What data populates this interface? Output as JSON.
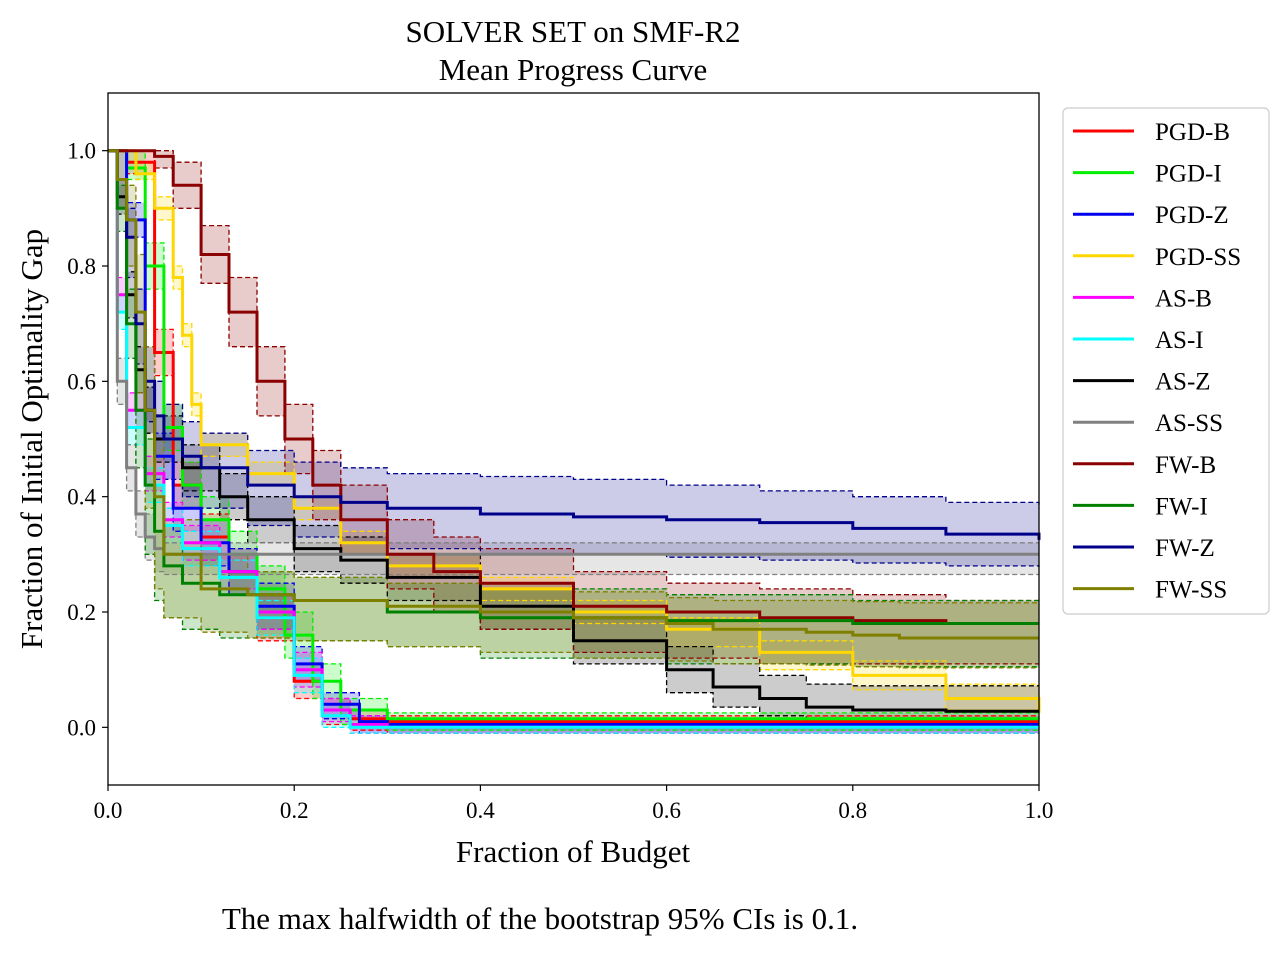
{
  "chart_data": {
    "type": "line",
    "title": "SOLVER SET on SMF-R2",
    "subtitle": "Mean Progress Curve",
    "xlabel": "Fraction of Budget",
    "ylabel": "Fraction of Initial Optimality Gap",
    "xlim": [
      0,
      1
    ],
    "ylim": [
      -0.1,
      1.1
    ],
    "xticks": [
      "0.0",
      "0.2",
      "0.4",
      "0.6",
      "0.8",
      "1.0"
    ],
    "yticks": [
      "0.0",
      "0.2",
      "0.4",
      "0.6",
      "0.8",
      "1.0"
    ],
    "grid": false,
    "legend_position": "outside right",
    "footnote": "The max halfwidth of the bootstrap 95% CIs is 0.1.",
    "series": [
      {
        "name": "PGD-B",
        "color": "#ff0000",
        "x": [
          0,
          0.02,
          0.05,
          0.07,
          0.1,
          0.13,
          0.16,
          0.2,
          0.23,
          0.26,
          0.3,
          1.0
        ],
        "y": [
          1.0,
          0.98,
          0.65,
          0.42,
          0.33,
          0.27,
          0.19,
          0.08,
          0.03,
          0.015,
          0.01,
          0.01
        ],
        "ci_low": [
          1.0,
          0.96,
          0.61,
          0.38,
          0.29,
          0.23,
          0.15,
          0.05,
          0.005,
          -0.005,
          -0.01,
          -0.01
        ],
        "ci_high": [
          1.0,
          1.0,
          0.69,
          0.46,
          0.37,
          0.31,
          0.23,
          0.11,
          0.05,
          0.03,
          0.02,
          0.02
        ]
      },
      {
        "name": "PGD-I",
        "color": "#00ee00",
        "x": [
          0,
          0.02,
          0.04,
          0.06,
          0.08,
          0.1,
          0.13,
          0.16,
          0.19,
          0.22,
          0.25,
          0.3,
          1.0
        ],
        "y": [
          1.0,
          0.97,
          0.8,
          0.52,
          0.42,
          0.36,
          0.3,
          0.24,
          0.16,
          0.08,
          0.03,
          0.015,
          0.015
        ],
        "ci_low": [
          1.0,
          0.95,
          0.76,
          0.48,
          0.38,
          0.32,
          0.26,
          0.2,
          0.12,
          0.05,
          0.005,
          -0.005,
          -0.005
        ],
        "ci_high": [
          1.0,
          1.0,
          0.84,
          0.56,
          0.46,
          0.4,
          0.34,
          0.28,
          0.2,
          0.11,
          0.05,
          0.025,
          0.025
        ]
      },
      {
        "name": "PGD-Z",
        "color": "#0000ee",
        "x": [
          0,
          0.02,
          0.04,
          0.05,
          0.07,
          0.1,
          0.13,
          0.16,
          0.2,
          0.23,
          0.27,
          0.3,
          1.0
        ],
        "y": [
          1.0,
          0.88,
          0.55,
          0.47,
          0.38,
          0.32,
          0.27,
          0.21,
          0.11,
          0.04,
          0.01,
          0.005,
          0.005
        ],
        "ci_low": [
          1.0,
          0.85,
          0.51,
          0.43,
          0.34,
          0.28,
          0.23,
          0.17,
          0.08,
          0.015,
          -0.01,
          -0.01,
          -0.01
        ],
        "ci_high": [
          1.0,
          0.91,
          0.59,
          0.51,
          0.42,
          0.36,
          0.31,
          0.25,
          0.14,
          0.06,
          0.02,
          0.015,
          0.015
        ]
      },
      {
        "name": "PGD-SS",
        "color": "#ffd700",
        "x": [
          0,
          0.03,
          0.05,
          0.07,
          0.08,
          0.09,
          0.1,
          0.15,
          0.2,
          0.25,
          0.3,
          0.4,
          0.5,
          0.6,
          0.7,
          0.8,
          0.9,
          1.0
        ],
        "y": [
          1.0,
          0.96,
          0.9,
          0.78,
          0.68,
          0.56,
          0.49,
          0.44,
          0.38,
          0.32,
          0.28,
          0.24,
          0.2,
          0.17,
          0.13,
          0.09,
          0.05,
          0.025
        ],
        "ci_low": [
          1.0,
          0.95,
          0.88,
          0.76,
          0.66,
          0.54,
          0.47,
          0.42,
          0.36,
          0.3,
          0.26,
          0.22,
          0.18,
          0.14,
          0.1,
          0.065,
          0.03,
          0.01
        ],
        "ci_high": [
          1.0,
          0.98,
          0.92,
          0.8,
          0.7,
          0.58,
          0.51,
          0.46,
          0.4,
          0.34,
          0.3,
          0.26,
          0.22,
          0.19,
          0.15,
          0.115,
          0.075,
          0.045
        ]
      },
      {
        "name": "AS-B",
        "color": "#ff00ff",
        "x": [
          0,
          0.01,
          0.02,
          0.04,
          0.06,
          0.08,
          0.12,
          0.16,
          0.2,
          0.23,
          0.26,
          0.3,
          1.0
        ],
        "y": [
          1.0,
          0.75,
          0.55,
          0.44,
          0.36,
          0.32,
          0.27,
          0.2,
          0.1,
          0.03,
          0.005,
          0.0,
          0.0
        ],
        "ci_low": [
          1.0,
          0.72,
          0.52,
          0.41,
          0.33,
          0.29,
          0.24,
          0.17,
          0.07,
          0.01,
          -0.01,
          -0.01,
          -0.01
        ],
        "ci_high": [
          1.0,
          0.78,
          0.58,
          0.47,
          0.39,
          0.35,
          0.3,
          0.23,
          0.13,
          0.05,
          0.02,
          0.01,
          0.01
        ]
      },
      {
        "name": "AS-I",
        "color": "#00ffff",
        "x": [
          0,
          0.01,
          0.02,
          0.04,
          0.06,
          0.08,
          0.12,
          0.16,
          0.2,
          0.23,
          0.26,
          0.3,
          1.0
        ],
        "y": [
          1.0,
          0.72,
          0.52,
          0.42,
          0.35,
          0.31,
          0.26,
          0.19,
          0.09,
          0.02,
          0.0,
          0.0,
          0.0
        ],
        "ci_low": [
          1.0,
          0.69,
          0.49,
          0.39,
          0.32,
          0.28,
          0.23,
          0.16,
          0.06,
          0.0,
          -0.01,
          -0.01,
          -0.01
        ],
        "ci_high": [
          1.0,
          0.75,
          0.55,
          0.45,
          0.38,
          0.34,
          0.29,
          0.22,
          0.12,
          0.04,
          0.015,
          0.01,
          0.01
        ]
      },
      {
        "name": "AS-Z",
        "color": "#000000",
        "x": [
          0,
          0.01,
          0.02,
          0.03,
          0.04,
          0.05,
          0.08,
          0.12,
          0.15,
          0.2,
          0.25,
          0.3,
          0.4,
          0.5,
          0.6,
          0.65,
          0.7,
          0.75,
          0.8,
          0.9,
          1.0
        ],
        "y": [
          1.0,
          0.92,
          0.75,
          0.62,
          0.55,
          0.5,
          0.45,
          0.4,
          0.36,
          0.31,
          0.29,
          0.26,
          0.21,
          0.15,
          0.1,
          0.07,
          0.05,
          0.035,
          0.03,
          0.028,
          0.028
        ],
        "ci_low": [
          1.0,
          0.89,
          0.71,
          0.58,
          0.51,
          0.46,
          0.41,
          0.36,
          0.32,
          0.27,
          0.25,
          0.22,
          0.17,
          0.11,
          0.06,
          0.035,
          0.02,
          0.01,
          0.005,
          0.003,
          0.003
        ],
        "ci_high": [
          1.0,
          0.95,
          0.79,
          0.66,
          0.59,
          0.54,
          0.49,
          0.44,
          0.4,
          0.35,
          0.33,
          0.3,
          0.25,
          0.19,
          0.14,
          0.11,
          0.09,
          0.075,
          0.072,
          0.072,
          0.072
        ]
      },
      {
        "name": "AS-SS",
        "color": "#808080",
        "x": [
          0,
          0.01,
          0.02,
          0.03,
          0.04,
          0.05,
          0.06,
          0.1,
          1.0
        ],
        "y": [
          1.0,
          0.6,
          0.45,
          0.37,
          0.33,
          0.31,
          0.3,
          0.3,
          0.3
        ],
        "ci_low": [
          1.0,
          0.56,
          0.41,
          0.33,
          0.29,
          0.27,
          0.265,
          0.265,
          0.265
        ],
        "ci_high": [
          1.0,
          0.64,
          0.49,
          0.41,
          0.37,
          0.34,
          0.32,
          0.32,
          0.32
        ]
      },
      {
        "name": "FW-B",
        "color": "#8b0000",
        "x": [
          0,
          0.05,
          0.07,
          0.1,
          0.13,
          0.16,
          0.19,
          0.22,
          0.25,
          0.3,
          0.35,
          0.4,
          0.5,
          0.6,
          0.7,
          0.8,
          0.9,
          1.0
        ],
        "y": [
          1.0,
          0.99,
          0.94,
          0.82,
          0.72,
          0.6,
          0.5,
          0.42,
          0.36,
          0.3,
          0.27,
          0.25,
          0.21,
          0.2,
          0.19,
          0.185,
          0.18,
          0.18
        ],
        "ci_low": [
          1.0,
          0.97,
          0.9,
          0.77,
          0.66,
          0.54,
          0.44,
          0.36,
          0.3,
          0.24,
          0.2,
          0.17,
          0.13,
          0.12,
          0.11,
          0.11,
          0.11,
          0.11
        ],
        "ci_high": [
          1.0,
          1.0,
          0.98,
          0.87,
          0.78,
          0.66,
          0.56,
          0.48,
          0.42,
          0.36,
          0.33,
          0.31,
          0.27,
          0.25,
          0.24,
          0.23,
          0.22,
          0.22
        ]
      },
      {
        "name": "FW-I",
        "color": "#008000",
        "x": [
          0,
          0.01,
          0.02,
          0.03,
          0.04,
          0.05,
          0.06,
          0.08,
          0.12,
          0.2,
          0.3,
          0.4,
          0.6,
          0.8,
          1.0
        ],
        "y": [
          1.0,
          0.9,
          0.7,
          0.55,
          0.42,
          0.34,
          0.28,
          0.25,
          0.23,
          0.22,
          0.2,
          0.19,
          0.185,
          0.18,
          0.18
        ],
        "ci_low": [
          1.0,
          0.86,
          0.64,
          0.45,
          0.3,
          0.22,
          0.19,
          0.17,
          0.155,
          0.15,
          0.14,
          0.12,
          0.11,
          0.105,
          0.105
        ],
        "ci_high": [
          1.0,
          0.94,
          0.76,
          0.62,
          0.5,
          0.42,
          0.35,
          0.3,
          0.27,
          0.26,
          0.25,
          0.24,
          0.23,
          0.22,
          0.22
        ]
      },
      {
        "name": "FW-Z",
        "color": "#00008b",
        "x": [
          0,
          0.01,
          0.02,
          0.03,
          0.04,
          0.05,
          0.06,
          0.08,
          0.1,
          0.15,
          0.2,
          0.25,
          0.3,
          0.4,
          0.5,
          0.6,
          0.7,
          0.8,
          0.9,
          1.0
        ],
        "y": [
          1.0,
          0.95,
          0.85,
          0.7,
          0.6,
          0.54,
          0.5,
          0.47,
          0.45,
          0.42,
          0.4,
          0.39,
          0.38,
          0.37,
          0.365,
          0.36,
          0.355,
          0.345,
          0.335,
          0.325
        ],
        "ci_low": [
          1.0,
          0.9,
          0.78,
          0.63,
          0.53,
          0.47,
          0.43,
          0.4,
          0.38,
          0.35,
          0.33,
          0.32,
          0.31,
          0.3,
          0.3,
          0.295,
          0.29,
          0.285,
          0.28,
          0.278
        ],
        "ci_high": [
          1.0,
          1.0,
          0.9,
          0.76,
          0.66,
          0.6,
          0.56,
          0.53,
          0.51,
          0.48,
          0.46,
          0.45,
          0.44,
          0.435,
          0.43,
          0.42,
          0.41,
          0.4,
          0.39,
          0.38
        ]
      },
      {
        "name": "FW-SS",
        "color": "#808000",
        "x": [
          0,
          0.01,
          0.02,
          0.03,
          0.04,
          0.05,
          0.06,
          0.1,
          0.15,
          0.2,
          0.3,
          0.4,
          0.5,
          0.6,
          0.65,
          0.7,
          0.75,
          0.8,
          0.85,
          1.0
        ],
        "y": [
          1.0,
          0.95,
          0.88,
          0.72,
          0.55,
          0.4,
          0.3,
          0.24,
          0.23,
          0.22,
          0.21,
          0.2,
          0.19,
          0.18,
          0.17,
          0.17,
          0.165,
          0.16,
          0.155,
          0.155
        ],
        "ci_low": [
          1.0,
          0.9,
          0.8,
          0.58,
          0.38,
          0.24,
          0.19,
          0.165,
          0.155,
          0.15,
          0.14,
          0.13,
          0.12,
          0.115,
          0.11,
          0.11,
          0.108,
          0.105,
          0.103,
          0.103
        ],
        "ci_high": [
          1.0,
          1.0,
          0.94,
          0.82,
          0.66,
          0.5,
          0.36,
          0.3,
          0.27,
          0.26,
          0.25,
          0.24,
          0.235,
          0.225,
          0.22,
          0.22,
          0.22,
          0.218,
          0.216,
          0.216
        ]
      }
    ]
  }
}
